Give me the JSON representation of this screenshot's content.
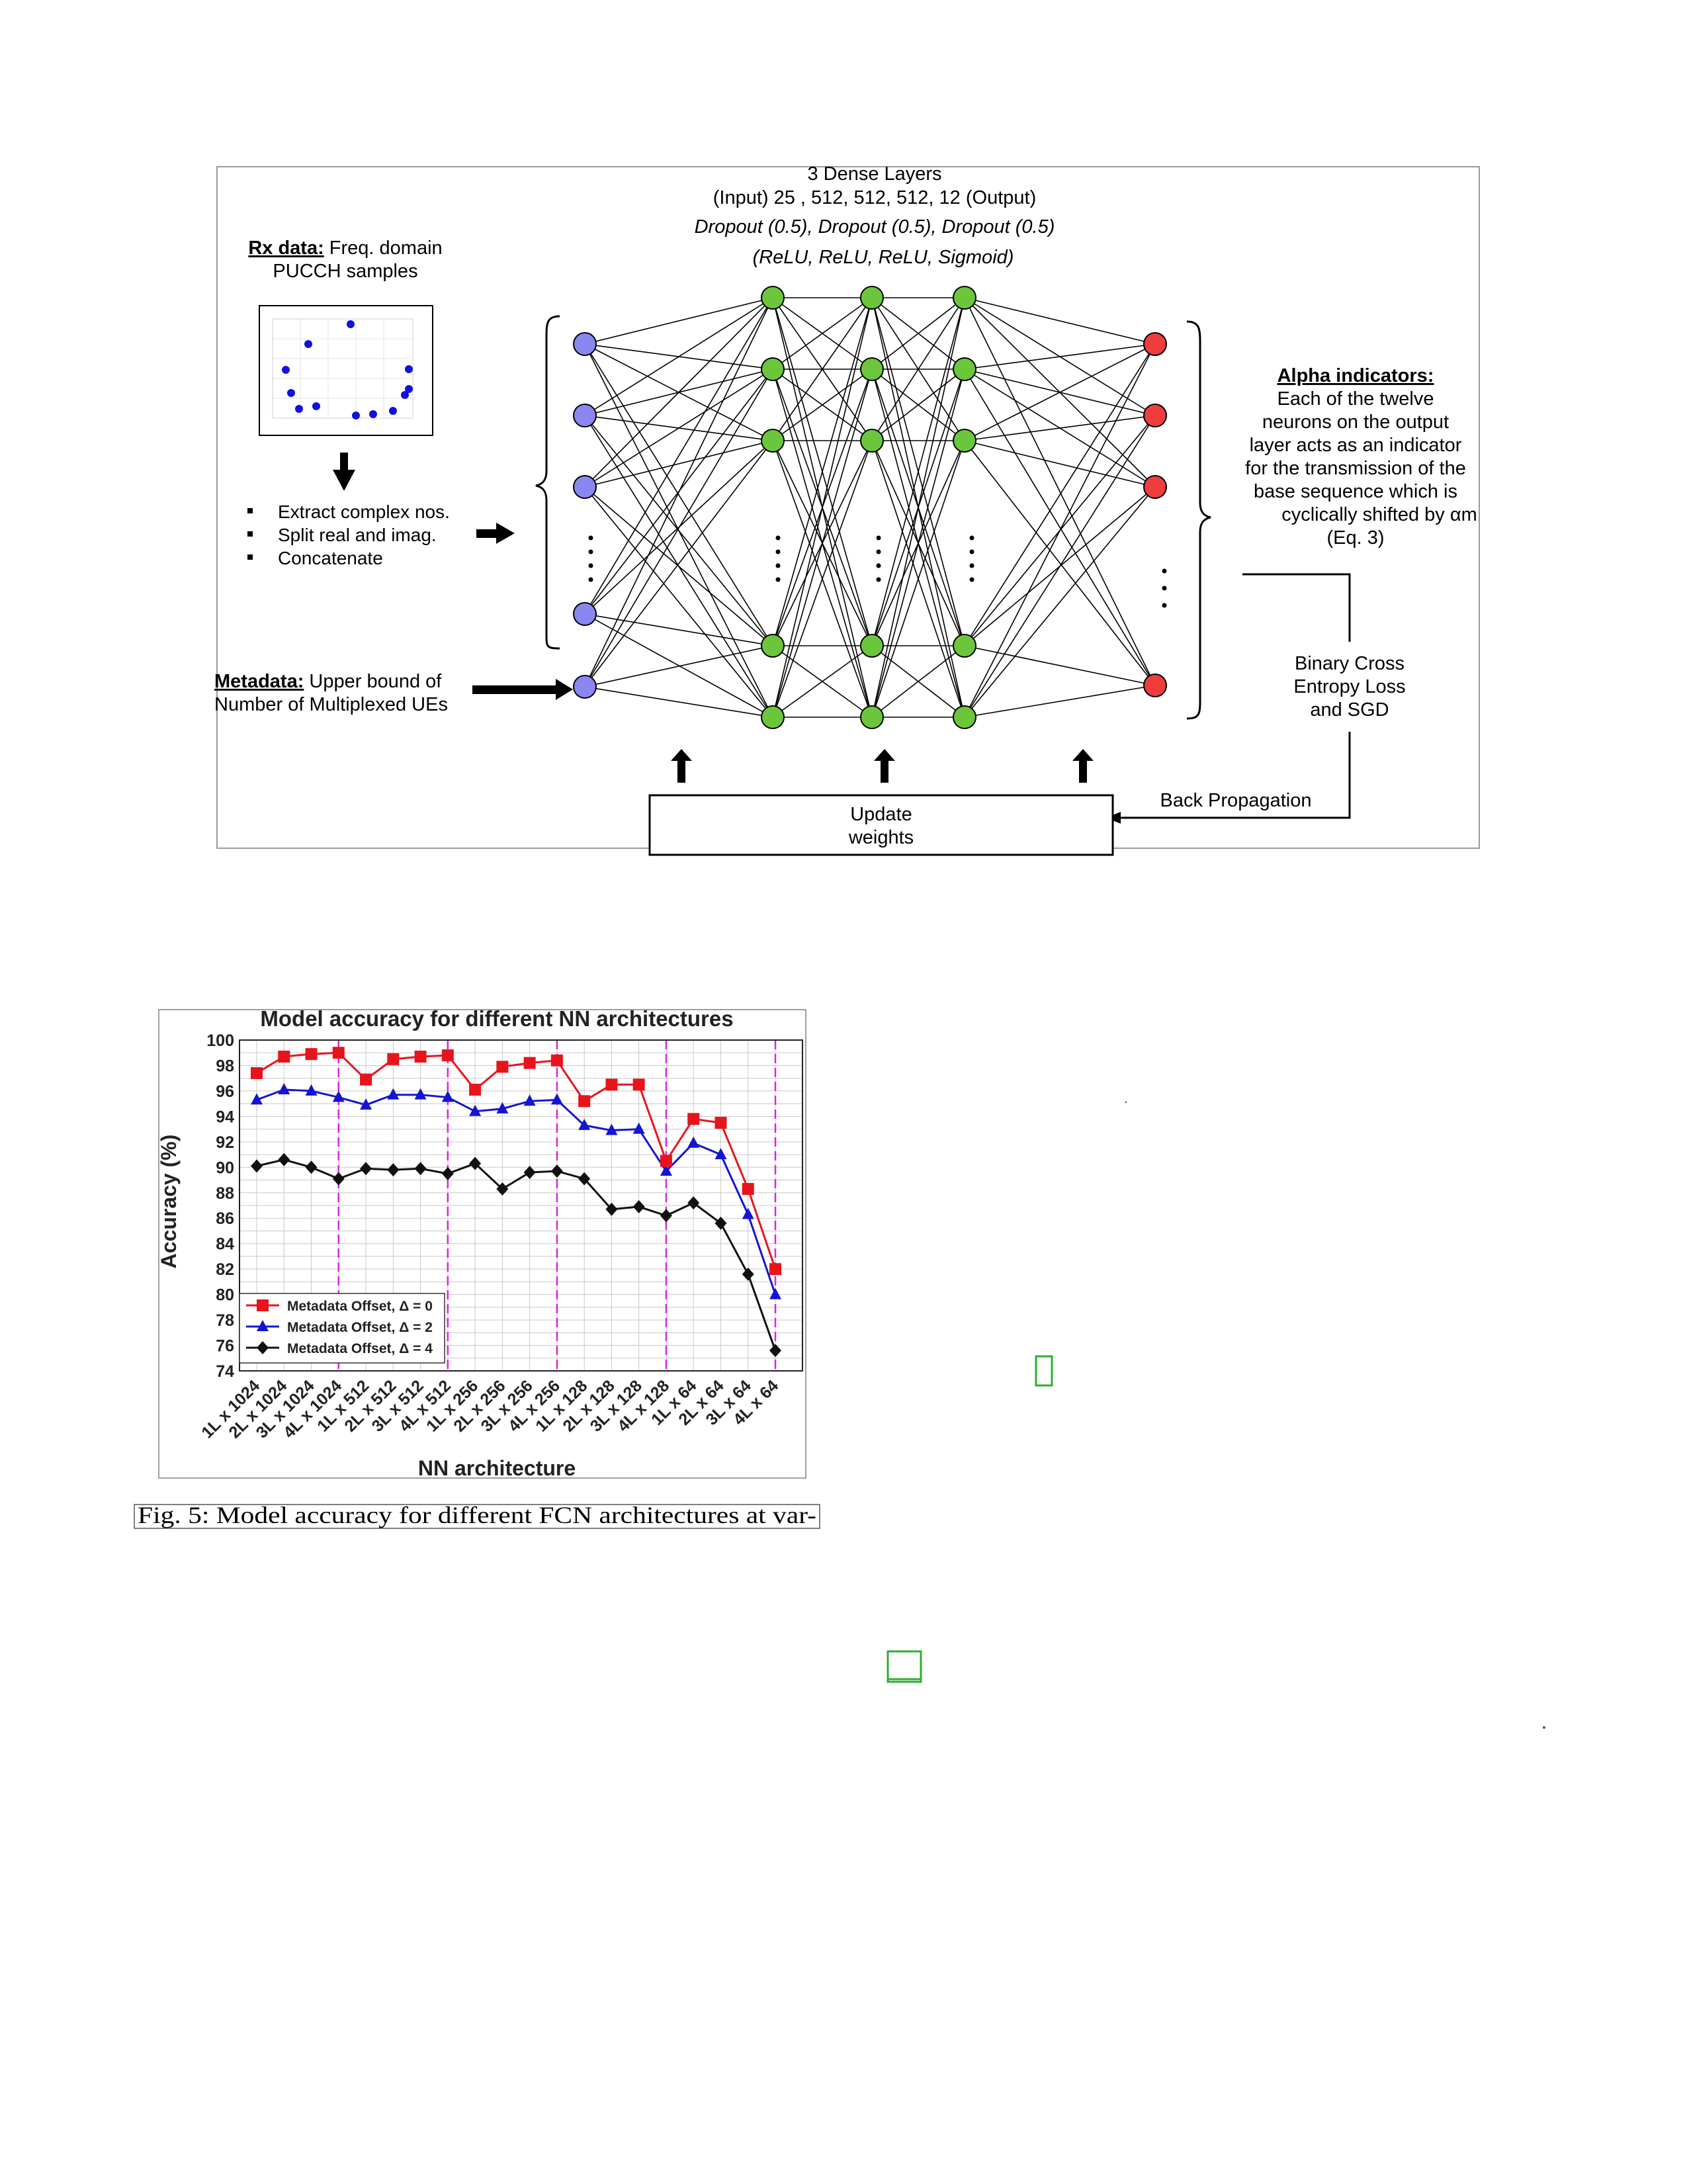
{
  "diagram": {
    "header": {
      "line1": "3 Dense Layers",
      "line2": "(Input) 25 , 512, 512, 512, 12 (Output)",
      "line3": "Dropout (0.5), Dropout (0.5), Dropout (0.5)",
      "line4": "(ReLU, ReLU, ReLU, Sigmoid)"
    },
    "rx": {
      "title": "Rx data:",
      "title_rest": " Freq. domain",
      "line2": "PUCCH samples"
    },
    "steps": [
      "Extract complex nos.",
      "Split real and imag.",
      "Concatenate"
    ],
    "metadata": {
      "title": "Metadata:",
      "title_rest": " Upper bound of",
      "line2": "Number of Multiplexed UEs"
    },
    "alpha": {
      "title": "Alpha indicators:",
      "lines": [
        "Each of the twelve",
        "neurons on the output",
        "layer acts as an indicator",
        "for the transmission of the",
        "base sequence which is",
        "cyclically shifted by αm",
        "(Eq. 3)"
      ]
    },
    "loss": [
      "Binary Cross",
      "Entropy Loss",
      "and SGD"
    ],
    "backprop": "Back Propagation",
    "update": [
      "Update",
      "weights"
    ],
    "colors": {
      "input": "#8a87f0",
      "hidden": "#6cc63c",
      "output": "#ef3d3d"
    }
  },
  "chart_data": {
    "type": "line",
    "title": "Model accuracy for different NN architectures",
    "xlabel": "NN architecture",
    "ylabel": "Accuracy (%)",
    "ylim": [
      74,
      100
    ],
    "yticks": [
      74,
      76,
      78,
      80,
      82,
      84,
      86,
      88,
      90,
      92,
      94,
      96,
      98,
      100
    ],
    "categories": [
      "1L x 1024",
      "2L x 1024",
      "3L x 1024",
      "4L x 1024",
      "1L x 512",
      "2L x 512",
      "3L x 512",
      "4L x 512",
      "1L x 256",
      "2L x 256",
      "3L x 256",
      "4L x 256",
      "1L x 128",
      "2L x 128",
      "3L x 128",
      "4L x 128",
      "1L x 64",
      "2L x 64",
      "3L x 64",
      "4L x 64"
    ],
    "group_separators": [
      3,
      7,
      11,
      15,
      19
    ],
    "grid": true,
    "legend_placement": "bottom-left",
    "series": [
      {
        "name": "Metadata Offset, Δ = 0",
        "color": "#e8141c",
        "marker": "square",
        "values": [
          97.4,
          98.7,
          98.9,
          99.0,
          96.9,
          98.5,
          98.7,
          98.8,
          96.1,
          97.9,
          98.2,
          98.4,
          95.2,
          96.5,
          96.5,
          90.5,
          93.8,
          93.5,
          88.3,
          82.0
        ]
      },
      {
        "name": "Metadata Offset, Δ = 2",
        "color": "#1414d4",
        "marker": "triangle",
        "values": [
          95.3,
          96.1,
          96.0,
          95.5,
          94.9,
          95.7,
          95.7,
          95.5,
          94.4,
          94.6,
          95.2,
          95.3,
          93.3,
          92.9,
          93.0,
          89.7,
          91.9,
          91.0,
          86.3,
          80.0
        ]
      },
      {
        "name": "Metadata Offset, Δ = 4",
        "color": "#111111",
        "marker": "diamond",
        "values": [
          90.1,
          90.6,
          90.0,
          89.1,
          89.9,
          89.8,
          89.9,
          89.5,
          90.3,
          88.3,
          89.6,
          89.7,
          89.1,
          86.7,
          86.9,
          86.2,
          87.2,
          85.6,
          81.6,
          75.6
        ]
      }
    ]
  },
  "caption": "Fig. 5: Model accuracy for different FCN architectures at var-"
}
